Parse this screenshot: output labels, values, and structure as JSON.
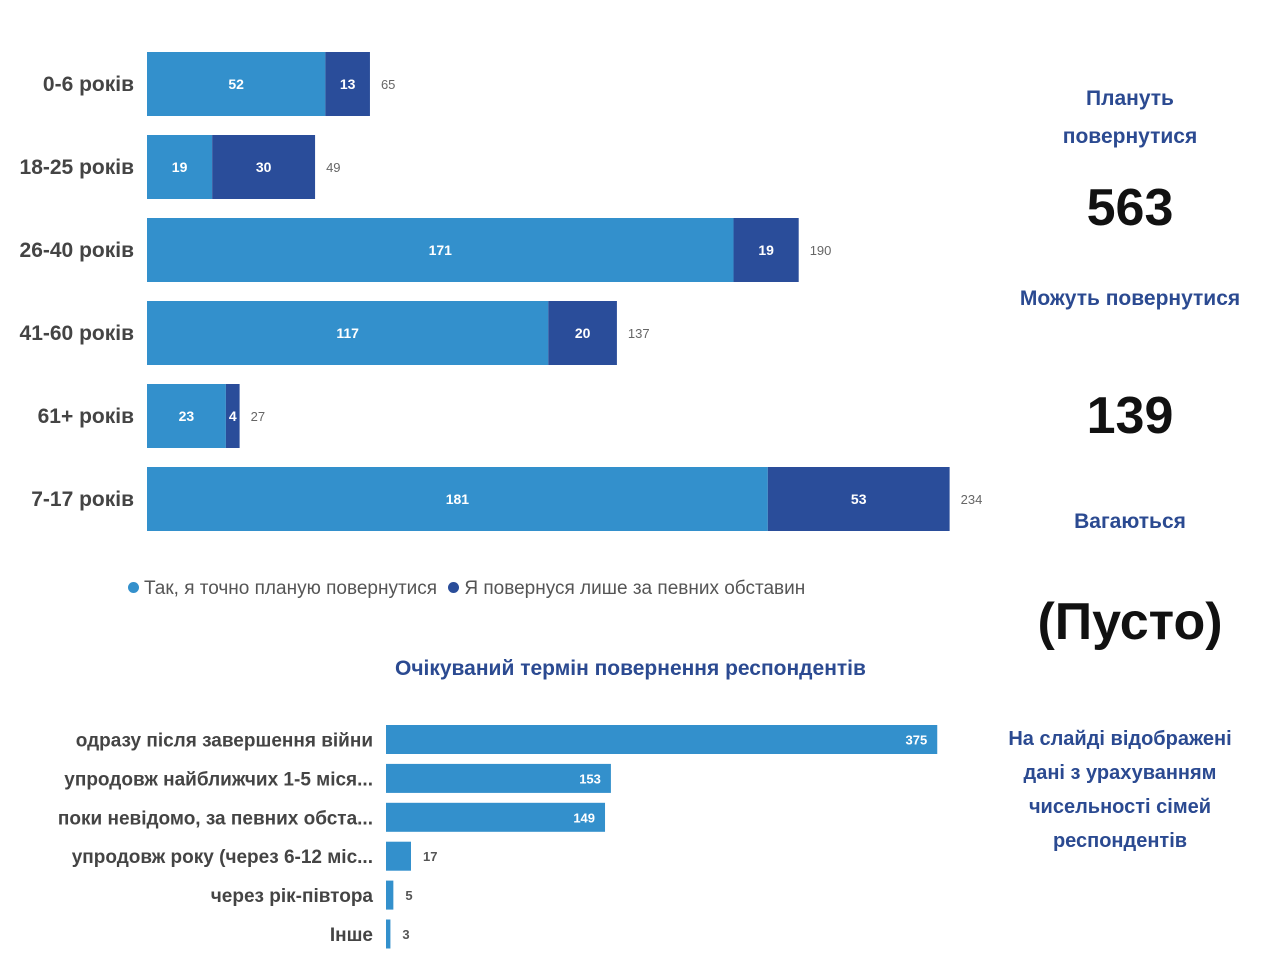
{
  "chart_data": [
    {
      "type": "bar",
      "orientation": "horizontal",
      "stacked": true,
      "categories": [
        "0-6 років",
        "18-25 років",
        "26-40 років",
        "41-60 років",
        "61+ років",
        "7-17 років"
      ],
      "series": [
        {
          "name": "Так, я точно планую повернутися",
          "values": [
            52,
            19,
            171,
            117,
            23,
            181
          ],
          "color": "#3390cc"
        },
        {
          "name": "Я повернуся лише за певних обставин",
          "values": [
            13,
            30,
            19,
            20,
            4,
            53
          ],
          "color": "#2a4d9a"
        }
      ],
      "totals": [
        65,
        49,
        190,
        137,
        27,
        234
      ],
      "legend_position": "bottom",
      "grid": false
    },
    {
      "type": "bar",
      "orientation": "horizontal",
      "title": "Очікуваний термін повернення респондентів",
      "categories": [
        "одразу після завершення війни",
        "упродовж найближчих 1-5 міся...",
        "поки невідомо, за певних обста...",
        "упродовж року (через 6-12 міс...",
        "через рік-півтора",
        "Інше"
      ],
      "values": [
        375,
        153,
        149,
        17,
        5,
        3
      ],
      "color": "#3390cc",
      "grid": false
    }
  ],
  "kpi": {
    "plan_label": "Плануть повернутися",
    "plan_value": "563",
    "may_label": "Можуть повернутися",
    "may_value": "139",
    "hesitate_label": "Вагаються",
    "hesitate_value": "(Пусто)"
  },
  "note": "На слайді відображені дані з урахуванням чисельності сімей респондентів"
}
